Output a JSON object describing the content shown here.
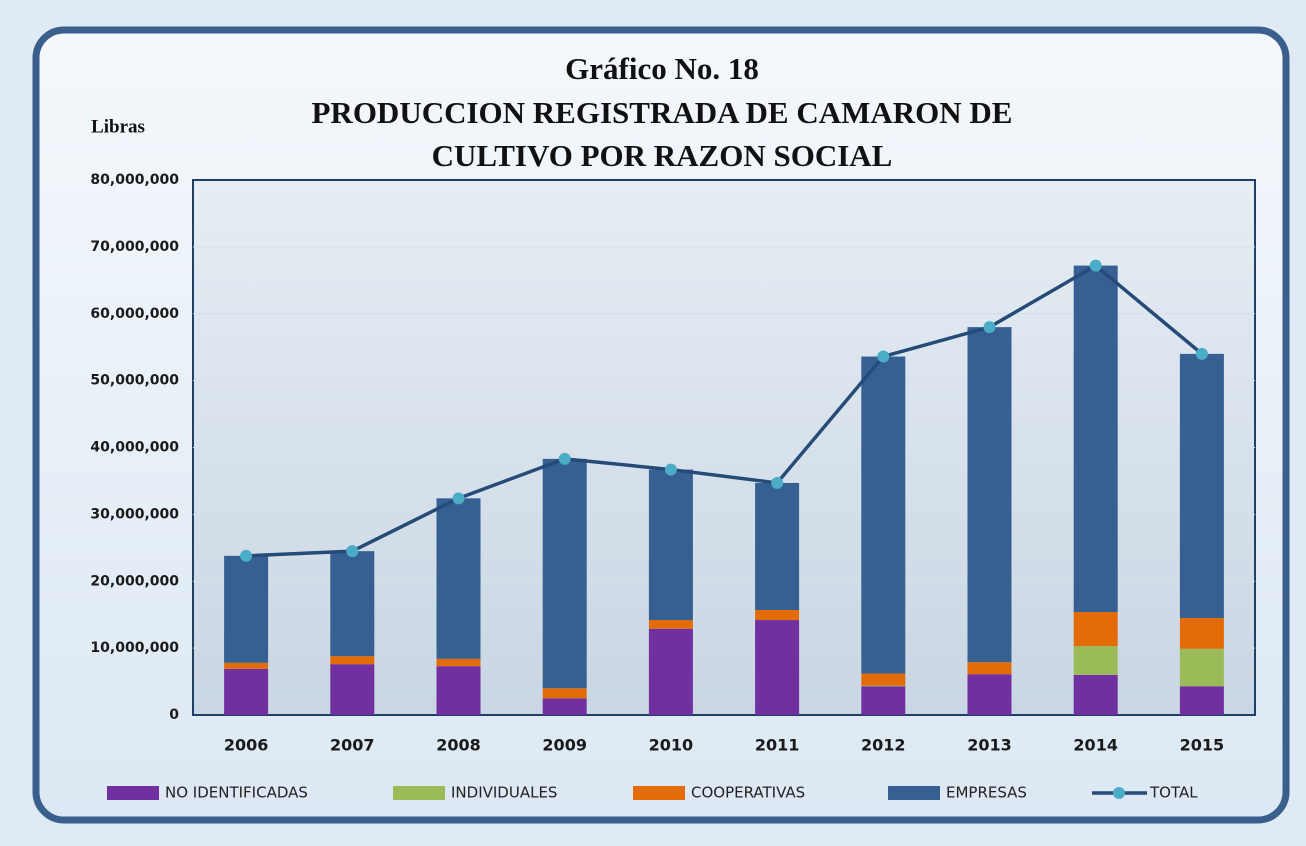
{
  "chart_data": {
    "type": "bar",
    "stacked": true,
    "title": "Gráfico No. 18",
    "subtitle": [
      "PRODUCCION REGISTRADA DE CAMARON DE",
      "CULTIVO POR RAZON SOCIAL"
    ],
    "ylabel": "Libras",
    "categories": [
      "2006",
      "2007",
      "2008",
      "2009",
      "2010",
      "2011",
      "2012",
      "2013",
      "2014",
      "2015"
    ],
    "series": [
      {
        "name": "NO IDENTIFICADAS",
        "color": "#7030a0",
        "values": [
          6900000,
          7600000,
          7300000,
          2500000,
          12900000,
          14200000,
          4300000,
          6100000,
          6000000,
          4300000
        ]
      },
      {
        "name": "INDIVIDUALES",
        "color": "#9bbb59",
        "values": [
          0,
          0,
          0,
          0,
          0,
          0,
          100000,
          0,
          4300000,
          5600000
        ]
      },
      {
        "name": "COOPERATIVAS",
        "color": "#e36c09",
        "values": [
          900000,
          1200000,
          1100000,
          1500000,
          1300000,
          1500000,
          1800000,
          1800000,
          5100000,
          4600000
        ]
      },
      {
        "name": "EMPRESAS",
        "color": "#366092",
        "values": [
          16000000,
          15700000,
          24000000,
          34300000,
          22500000,
          19000000,
          47400000,
          50100000,
          51800000,
          39500000
        ]
      },
      {
        "name": "TOTAL",
        "type": "line",
        "color": "#264b78",
        "marker_color": "#4bacc6",
        "values": [
          23800000,
          24500000,
          32400000,
          38300000,
          36700000,
          34700000,
          53600000,
          58000000,
          67200000,
          54000000
        ]
      }
    ],
    "ylim": [
      0,
      80000000
    ],
    "yticks": [
      0,
      {
        "value": 10000000,
        "label": "10,000,000"
      },
      {
        "value": 20000000,
        "label": "20,000,000"
      },
      {
        "value": 30000000,
        "label": "30,000,000"
      },
      {
        "value": 40000000,
        "label": "40,000,000"
      },
      {
        "value": 50000000,
        "label": "50,000,000"
      },
      {
        "value": 60000000,
        "label": "60,000,000"
      },
      {
        "value": 70000000,
        "label": "70,000,000"
      },
      {
        "value": 80000000,
        "label": "80,000,000"
      }
    ],
    "grid": true,
    "legend": "bottom"
  }
}
